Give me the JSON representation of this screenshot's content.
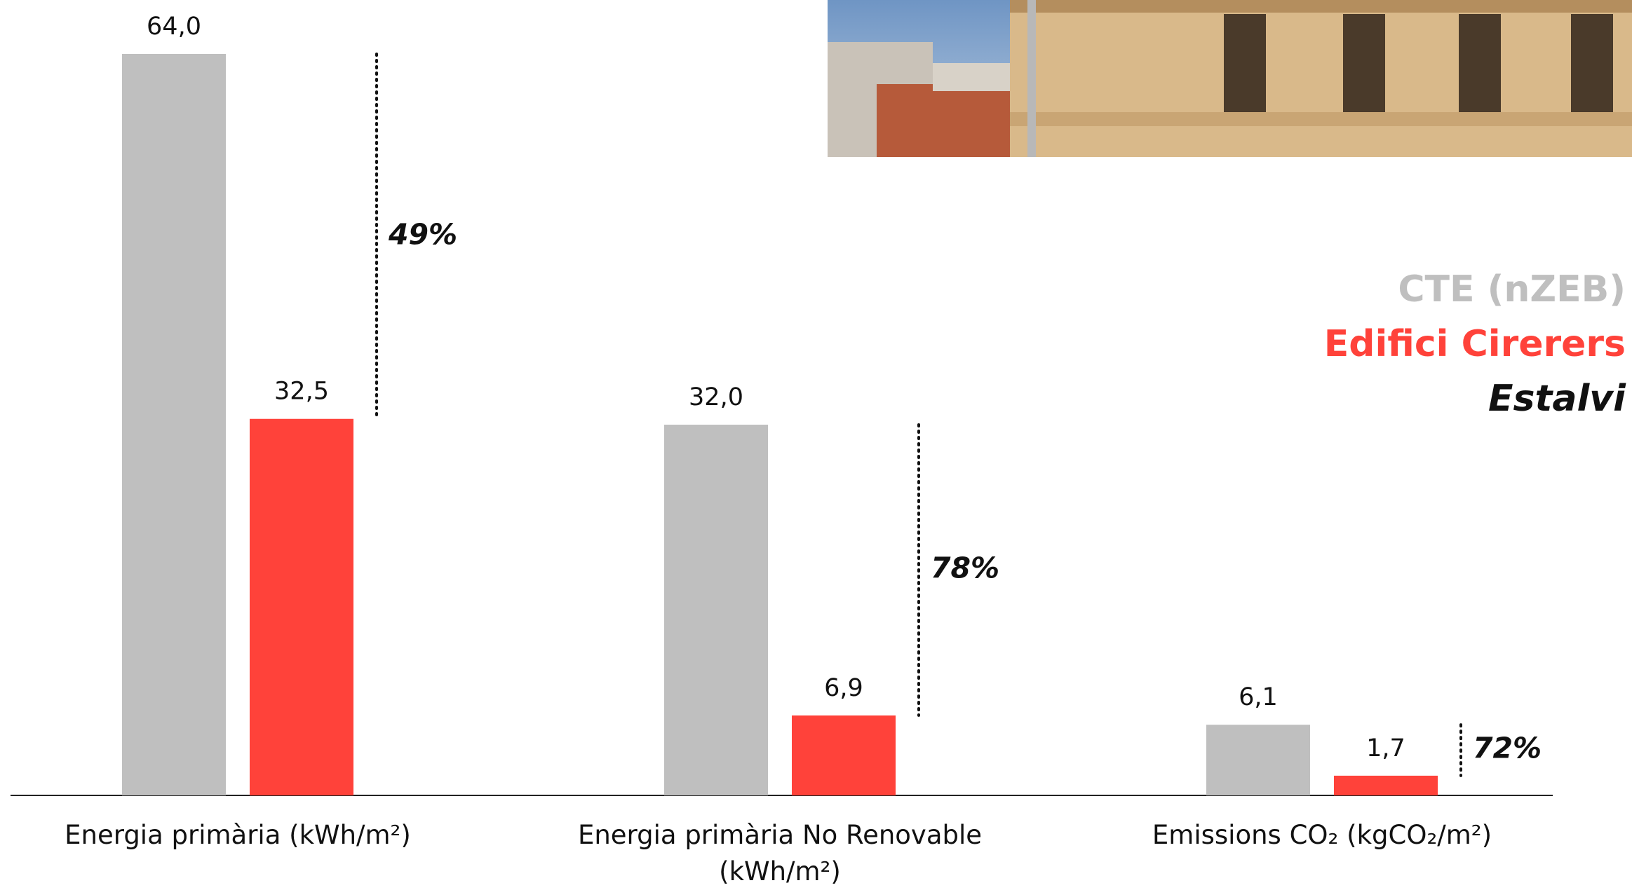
{
  "chart_data": {
    "type": "bar",
    "categories": [
      "Energia primària (kWh/m²)",
      "Energia primària No Renovable (kWh/m²)",
      "Emissions CO₂ (kgCO₂/m²)"
    ],
    "series": [
      {
        "name": "CTE (nZEB)",
        "color": "#bfbfbf",
        "values": [
          64.0,
          32.0,
          6.1
        ],
        "value_labels": [
          "64,0",
          "32,0",
          "6,1"
        ]
      },
      {
        "name": "Edifici Cirerers",
        "color": "#ff423a",
        "values": [
          32.5,
          6.9,
          1.7
        ],
        "value_labels": [
          "32,5",
          "6,9",
          "1,7"
        ]
      }
    ],
    "savings_name": "Estalvi",
    "savings_labels": [
      "49%",
      "78%",
      "72%"
    ]
  }
}
